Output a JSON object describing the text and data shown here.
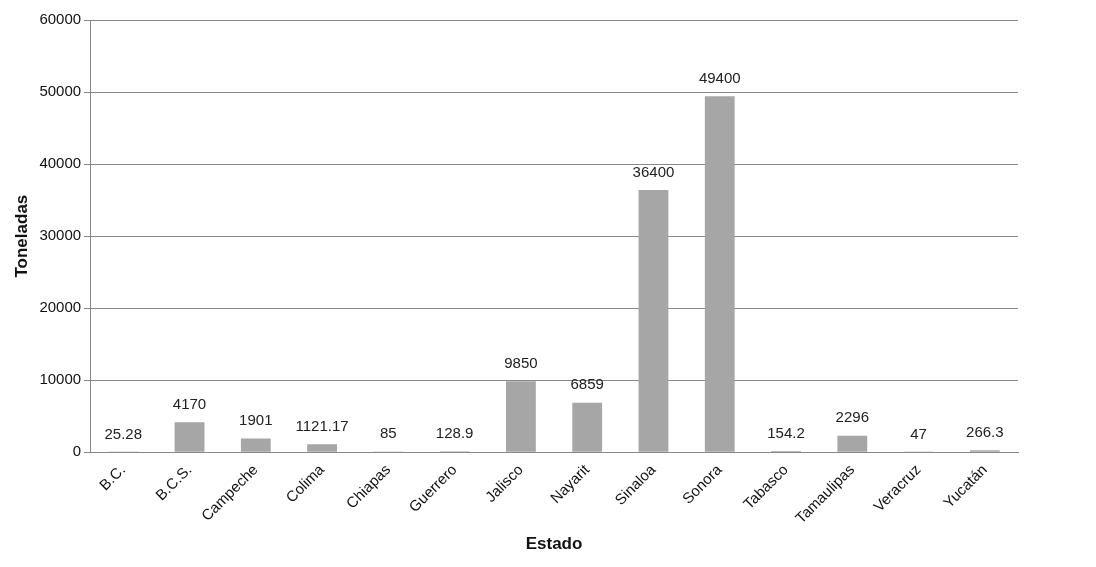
{
  "chart_data": {
    "type": "bar",
    "xlabel": "Estado",
    "ylabel": "Toneladas",
    "categories": [
      "B.C.",
      "B.C.S.",
      "Campeche",
      "Colima",
      "Chiapas",
      "Guerrero",
      "Jalisco",
      "Nayarit",
      "Sinaloa",
      "Sonora",
      "Tabasco",
      "Tamaulipas",
      "Veracruz",
      "Yucatán"
    ],
    "values": [
      25.28,
      4170,
      1901,
      1121.17,
      85,
      128.9,
      9850,
      6859,
      36400,
      49400,
      154.2,
      2296,
      47,
      266.3
    ],
    "color": "#a6a6a6",
    "ylim": [
      0,
      60000
    ],
    "yticks": [
      0,
      10000,
      20000,
      30000,
      40000,
      50000,
      60000
    ],
    "grid": "y",
    "data_labels": true,
    "legend": false
  }
}
